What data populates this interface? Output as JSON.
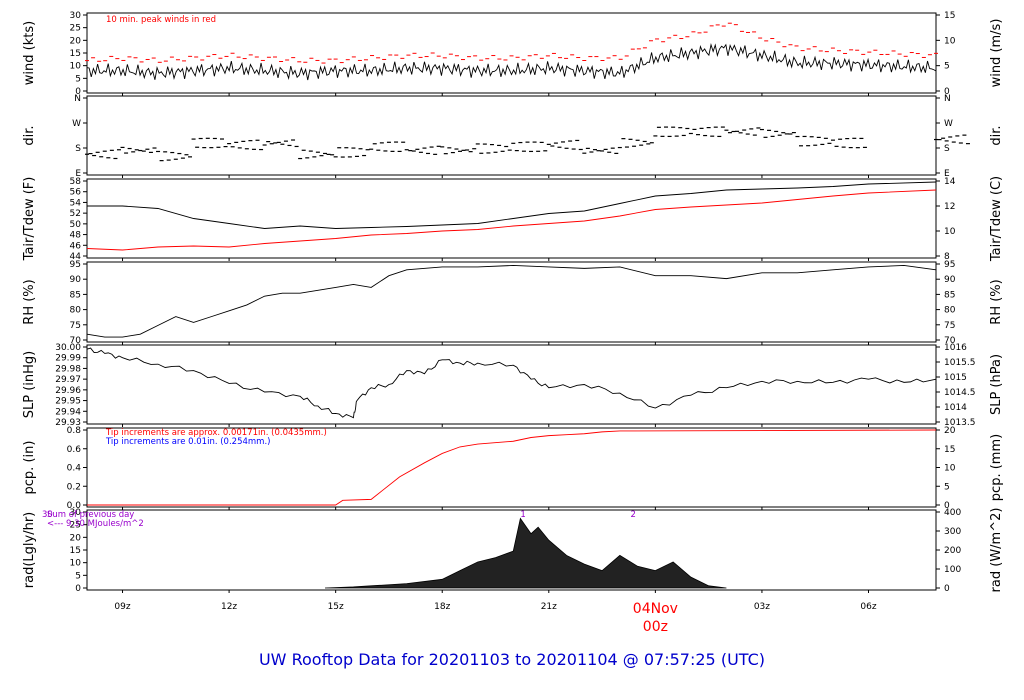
{
  "title": "UW Rooftop Data for 20201103  to  20201104 @ 07:57:25  (UTC)",
  "x_axis": {
    "ticks": [
      "09z",
      "12z",
      "15z",
      "18z",
      "21z",
      "04Nov",
      "03z",
      "06z"
    ],
    "day_label": "04Nov",
    "day_sub": "00z",
    "day_color": "#ff0000"
  },
  "chart_data": [
    {
      "type": "line",
      "panel": "wind",
      "ylabel_left": "wind (kts)",
      "ylabel_right": "wind (m/s)",
      "ylim": [
        0,
        30
      ],
      "yticks_left": [
        "0",
        "5",
        "10",
        "15",
        "20",
        "25",
        "30"
      ],
      "yticks_right": [
        "0",
        "5",
        "10",
        "15"
      ],
      "annotation": "10 min. peak winds in red",
      "series": [
        {
          "color": "#000000",
          "x": [
            8,
            9,
            10,
            11,
            12,
            13,
            14,
            15,
            16,
            17,
            18,
            19,
            20,
            21,
            22,
            23,
            24,
            25,
            26,
            27,
            28,
            29,
            31.9
          ],
          "y": [
            8,
            8,
            7,
            8,
            9,
            8,
            7,
            8,
            8,
            9,
            9,
            8,
            8,
            9,
            8,
            7,
            13,
            15,
            17,
            14,
            11,
            11,
            9
          ]
        },
        {
          "color": "#ff0000",
          "x": [
            8,
            9,
            10,
            11,
            12,
            13,
            14,
            15,
            16,
            17,
            18,
            19,
            20,
            21,
            22,
            23,
            24,
            25,
            26,
            27,
            28,
            29,
            31.9
          ],
          "y": [
            12,
            13,
            12,
            13,
            14,
            13,
            12,
            12,
            13,
            14,
            14,
            13,
            13,
            14,
            13,
            13,
            20,
            22,
            27,
            21,
            17,
            16,
            14
          ]
        }
      ]
    },
    {
      "type": "scatter",
      "panel": "dir",
      "ylabel_left": "dir.",
      "ylabel_right": "dir.",
      "yticks_left": [
        "E",
        "S",
        "W",
        "N"
      ],
      "ylim": [
        0,
        4
      ],
      "series": [
        {
          "color": "#000000",
          "x": [
            8,
            9,
            10,
            11,
            12,
            13,
            14,
            15,
            16,
            17,
            18,
            19,
            20,
            21,
            22,
            23,
            24,
            25,
            26,
            27,
            28,
            29,
            31.9
          ],
          "y": [
            1.0,
            1.2,
            0.9,
            1.6,
            1.5,
            1.6,
            1.0,
            1.1,
            1.4,
            1.2,
            1.2,
            1.3,
            1.4,
            1.5,
            1.2,
            1.6,
            2.2,
            2.2,
            2.2,
            2.1,
            1.7,
            1.6,
            1.8
          ]
        }
      ]
    },
    {
      "type": "line",
      "panel": "temp",
      "ylabel_left": "Tair/Tdew (F)",
      "ylabel_right": "Tair/Tdew (C)",
      "ylim": [
        44,
        59
      ],
      "yticks_left": [
        "44",
        "46",
        "48",
        "50",
        "52",
        "54",
        "56",
        "58"
      ],
      "yticks_right": [
        "8",
        "10",
        "12",
        "14"
      ],
      "series": [
        {
          "color": "#000000",
          "x": [
            8,
            9,
            10,
            11,
            12,
            13,
            14,
            15,
            16,
            17,
            18,
            19,
            20,
            21,
            22,
            23,
            24,
            25,
            26,
            27,
            28,
            29,
            30,
            31.9
          ],
          "y": [
            54,
            54,
            53.5,
            51.5,
            50.5,
            49.5,
            50,
            49.5,
            49.7,
            49.9,
            50.2,
            50.5,
            51.5,
            52.5,
            53,
            54.5,
            56,
            56.5,
            57.2,
            57.4,
            57.6,
            57.9,
            58.4,
            58.8
          ]
        },
        {
          "color": "#ff0000",
          "x": [
            8,
            9,
            10,
            11,
            12,
            13,
            14,
            15,
            16,
            17,
            18,
            19,
            20,
            21,
            22,
            23,
            24,
            25,
            26,
            27,
            28,
            29,
            30,
            31.9
          ],
          "y": [
            45.5,
            45.2,
            45.8,
            46,
            45.8,
            46.5,
            47,
            47.5,
            48.2,
            48.5,
            49,
            49.3,
            50,
            50.5,
            51,
            52,
            53.3,
            53.8,
            54.2,
            54.6,
            55.3,
            56,
            56.6,
            57.2
          ]
        }
      ]
    },
    {
      "type": "line",
      "panel": "rh",
      "ylabel_left": "RH (%)",
      "ylabel_right": "RH (%)",
      "ylim": [
        70,
        96
      ],
      "yticks_left": [
        "70",
        "75",
        "80",
        "85",
        "90",
        "95"
      ],
      "yticks_right": [
        "70",
        "75",
        "80",
        "85",
        "90",
        "95"
      ],
      "series": [
        {
          "color": "#000000",
          "x": [
            8,
            8.5,
            9,
            9.5,
            10,
            10.5,
            11,
            11.5,
            12,
            12.5,
            13,
            13.5,
            14,
            15,
            15.5,
            16,
            16.5,
            17,
            18,
            19,
            20,
            21,
            22,
            23,
            24,
            25,
            26,
            27,
            28,
            29,
            30,
            31,
            31.9
          ],
          "y": [
            72,
            71,
            71,
            72,
            75,
            78,
            76,
            78,
            80,
            82,
            85,
            86,
            86,
            88,
            89,
            88,
            92,
            94,
            95,
            95,
            95.5,
            95,
            94.5,
            95,
            92,
            92,
            91,
            93,
            93,
            94,
            95,
            95.5,
            94
          ]
        }
      ]
    },
    {
      "type": "line",
      "panel": "slp",
      "ylabel_left": "SLP (inHg)",
      "ylabel_right": "SLP (hPa)",
      "ylim": [
        29.93,
        30.0
      ],
      "yticks_left": [
        "29.93",
        "29.94",
        "29.95",
        "29.96",
        "29.97",
        "29.98",
        "29.99",
        "30.00"
      ],
      "yticks_right": [
        "1013.5",
        "1014",
        "1014.5",
        "1015",
        "1015.5",
        "1016"
      ],
      "series": [
        {
          "color": "#000000",
          "x": [
            8,
            8.5,
            9,
            10,
            11,
            12,
            13,
            14,
            14.5,
            15,
            15.5,
            15.6,
            16,
            16.5,
            17,
            17.5,
            18,
            18.5,
            19,
            20,
            20.5,
            21,
            22,
            23,
            24,
            25,
            26,
            27,
            28,
            29,
            30,
            31,
            31.9
          ],
          "y": [
            29.998,
            29.994,
            29.99,
            29.984,
            29.978,
            29.966,
            29.958,
            29.954,
            29.945,
            29.938,
            29.934,
            29.95,
            29.962,
            29.965,
            29.978,
            29.975,
            29.988,
            29.985,
            29.985,
            29.983,
            29.97,
            29.962,
            29.965,
            29.957,
            29.943,
            29.955,
            29.962,
            29.968,
            29.968,
            29.967,
            29.97,
            29.967,
            29.97
          ]
        }
      ]
    },
    {
      "type": "line",
      "panel": "pcp",
      "ylabel_left": "pcp. (in)",
      "ylabel_right": "pcp. (mm)",
      "ylim": [
        0,
        0.8
      ],
      "yticks_left": [
        "0.0",
        "0.2",
        "0.4",
        "0.6",
        "0.8"
      ],
      "yticks_right": [
        "0",
        "5",
        "10",
        "15",
        "20"
      ],
      "notes": [
        {
          "text": "Tip increments are approx. 0.00171in. (0.0435mm.)",
          "color": "#ff0000"
        },
        {
          "text": "Tip increments are 0.01in. (0.254mm.)",
          "color": "#0000ff"
        }
      ],
      "series": [
        {
          "color": "#ff0000",
          "x": [
            8,
            15,
            15.2,
            16,
            16.3,
            16.8,
            17.5,
            18,
            18.5,
            19,
            20,
            20.5,
            21,
            21.5,
            22,
            22.5,
            23,
            31.9
          ],
          "y": [
            0,
            0,
            0.05,
            0.06,
            0.15,
            0.3,
            0.45,
            0.55,
            0.62,
            0.65,
            0.68,
            0.72,
            0.74,
            0.75,
            0.76,
            0.78,
            0.79,
            0.8
          ]
        }
      ]
    },
    {
      "type": "area",
      "panel": "rad",
      "ylabel_left": "rad(Lgly/hr)",
      "ylabel_right": "rad (W/m^2)",
      "ylim": [
        0,
        35
      ],
      "yticks_left": [
        "0",
        "5",
        "10",
        "15",
        "20",
        "25",
        "30"
      ],
      "yticks_right": [
        "0",
        "100",
        "200",
        "300",
        "400"
      ],
      "notes": [
        {
          "text": "Sum of previous day",
          "color": "#9900cc"
        },
        {
          "text": "<--- 9.30 MJoules/m^2",
          "color": "#9900cc"
        }
      ],
      "markers": [
        "30",
        "1",
        "2"
      ],
      "series": [
        {
          "color": "#000000",
          "x": [
            14.7,
            15.5,
            16,
            17,
            18,
            18.5,
            19,
            19.5,
            20,
            20.2,
            20.5,
            20.7,
            21,
            21.5,
            22,
            22.5,
            23,
            23.5,
            24,
            24.5,
            25,
            25.5,
            26
          ],
          "y": [
            0,
            0.5,
            1,
            2,
            4,
            8,
            12,
            14,
            17,
            32,
            25,
            28,
            22,
            15,
            11,
            8,
            15,
            10,
            8,
            12,
            5,
            1,
            0
          ]
        }
      ]
    }
  ]
}
